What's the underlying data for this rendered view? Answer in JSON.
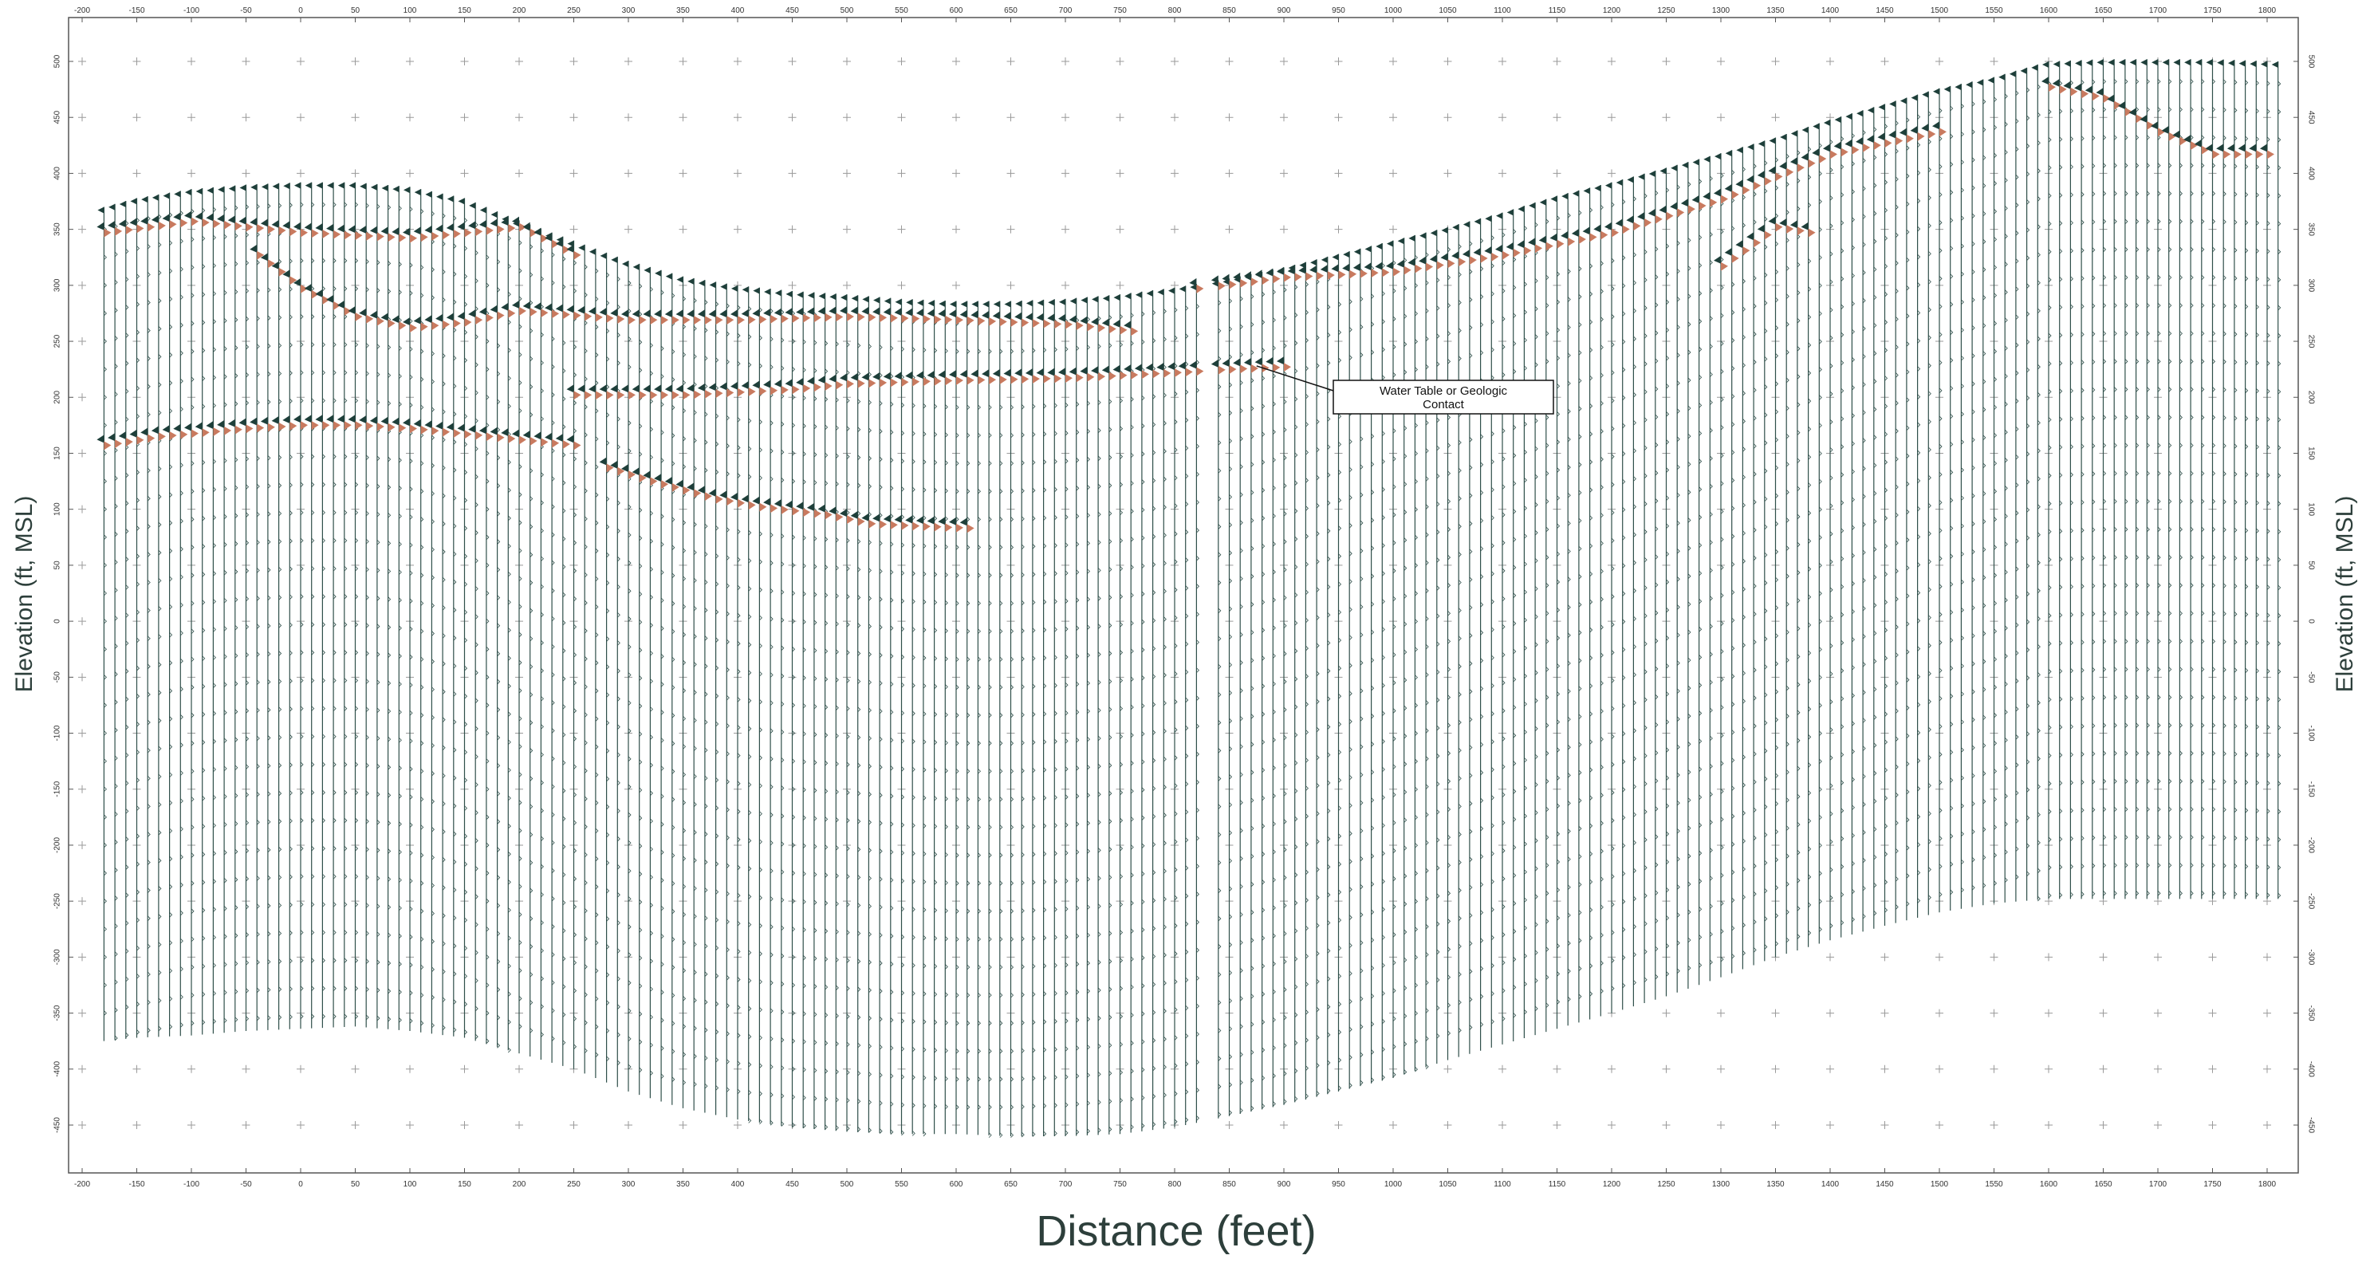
{
  "chart_data": {
    "type": "seismic-section",
    "xlabel": "Distance (feet)",
    "ylabel": "Elevation (ft, MSL)",
    "ylabel_right": "Elevation (ft, MSL)",
    "xlim": [
      -210,
      1815
    ],
    "ylim": [
      -490,
      505
    ],
    "x_ticks": [
      -200,
      -150,
      -100,
      -50,
      0,
      50,
      100,
      150,
      200,
      250,
      300,
      350,
      400,
      450,
      500,
      550,
      600,
      650,
      700,
      750,
      800,
      850,
      900,
      950,
      1000,
      1050,
      1100,
      1150,
      1200,
      1250,
      1300,
      1350,
      1400,
      1450,
      1500,
      1550,
      1600,
      1650,
      1700,
      1750,
      1800
    ],
    "y_ticks": [
      500,
      450,
      400,
      350,
      300,
      250,
      200,
      150,
      100,
      50,
      0,
      -50,
      -100,
      -150,
      -200,
      -250,
      -300,
      -350,
      -400,
      -450
    ],
    "grid": "plus-markers",
    "trace_spacing_ft": 10,
    "trace_x_start": -180,
    "trace_x_end": 1810,
    "gap_between_traces_at_ft": [
      830
    ],
    "colors": {
      "trace": "#2f4f4a",
      "positive_fill": "#1e3f3a",
      "negative_fill": "#c97a5f",
      "axis": "#555555",
      "grid_marker": "#9a9a9a"
    },
    "top_surface": [
      [
        -180,
        370
      ],
      [
        -150,
        378
      ],
      [
        -100,
        386
      ],
      [
        -50,
        390
      ],
      [
        0,
        392
      ],
      [
        50,
        392
      ],
      [
        100,
        388
      ],
      [
        150,
        378
      ],
      [
        200,
        358
      ],
      [
        250,
        340
      ],
      [
        300,
        322
      ],
      [
        350,
        308
      ],
      [
        400,
        300
      ],
      [
        450,
        295
      ],
      [
        500,
        292
      ],
      [
        550,
        288
      ],
      [
        600,
        286
      ],
      [
        650,
        286
      ],
      [
        700,
        288
      ],
      [
        750,
        292
      ],
      [
        800,
        298
      ],
      [
        850,
        306
      ],
      [
        900,
        316
      ],
      [
        950,
        328
      ],
      [
        1000,
        340
      ],
      [
        1050,
        352
      ],
      [
        1100,
        365
      ],
      [
        1150,
        380
      ],
      [
        1200,
        392
      ],
      [
        1250,
        405
      ],
      [
        1300,
        418
      ],
      [
        1350,
        432
      ],
      [
        1400,
        448
      ],
      [
        1450,
        462
      ],
      [
        1500,
        476
      ],
      [
        1550,
        486
      ],
      [
        1600,
        500
      ],
      [
        1650,
        502
      ],
      [
        1700,
        502
      ],
      [
        1750,
        502
      ],
      [
        1810,
        500
      ]
    ],
    "bottom_surface": [
      [
        -180,
        -375
      ],
      [
        -150,
        -372
      ],
      [
        -100,
        -370
      ],
      [
        -50,
        -366
      ],
      [
        0,
        -364
      ],
      [
        50,
        -362
      ],
      [
        100,
        -366
      ],
      [
        150,
        -372
      ],
      [
        200,
        -386
      ],
      [
        250,
        -400
      ],
      [
        300,
        -420
      ],
      [
        350,
        -435
      ],
      [
        400,
        -445
      ],
      [
        450,
        -452
      ],
      [
        500,
        -456
      ],
      [
        550,
        -458
      ],
      [
        600,
        -458
      ],
      [
        650,
        -460
      ],
      [
        700,
        -460
      ],
      [
        750,
        -458
      ],
      [
        800,
        -452
      ],
      [
        850,
        -442
      ],
      [
        900,
        -432
      ],
      [
        950,
        -420
      ],
      [
        1000,
        -408
      ],
      [
        1050,
        -392
      ],
      [
        1100,
        -378
      ],
      [
        1150,
        -364
      ],
      [
        1200,
        -350
      ],
      [
        1250,
        -335
      ],
      [
        1300,
        -318
      ],
      [
        1350,
        -300
      ],
      [
        1400,
        -285
      ],
      [
        1450,
        -272
      ],
      [
        1500,
        -260
      ],
      [
        1550,
        -252
      ],
      [
        1600,
        -248
      ],
      [
        1650,
        -248
      ],
      [
        1700,
        -248
      ],
      [
        1750,
        -248
      ],
      [
        1810,
        -248
      ]
    ],
    "reflectors": [
      {
        "points": [
          [
            -180,
            350
          ],
          [
            -100,
            360
          ],
          [
            0,
            350
          ],
          [
            100,
            345
          ],
          [
            200,
            355
          ],
          [
            250,
            330
          ]
        ]
      },
      {
        "points": [
          [
            -40,
            330
          ],
          [
            0,
            300
          ],
          [
            50,
            275
          ],
          [
            100,
            265
          ],
          [
            150,
            270
          ],
          [
            200,
            280
          ],
          [
            300,
            272
          ],
          [
            400,
            272
          ],
          [
            500,
            275
          ],
          [
            600,
            272
          ],
          [
            700,
            268
          ],
          [
            760,
            262
          ]
        ]
      },
      {
        "points": [
          [
            250,
            205
          ],
          [
            350,
            205
          ],
          [
            450,
            210
          ],
          [
            500,
            215
          ],
          [
            600,
            218
          ],
          [
            700,
            220
          ],
          [
            800,
            225
          ],
          [
            850,
            228
          ],
          [
            900,
            230
          ]
        ]
      },
      {
        "points": [
          [
            -180,
            160
          ],
          [
            -130,
            168
          ],
          [
            -50,
            175
          ],
          [
            0,
            178
          ],
          [
            50,
            178
          ],
          [
            100,
            175
          ],
          [
            150,
            170
          ],
          [
            200,
            165
          ],
          [
            250,
            160
          ]
        ]
      },
      {
        "points": [
          [
            280,
            140
          ],
          [
            320,
            128
          ],
          [
            380,
            112
          ],
          [
            420,
            105
          ],
          [
            480,
            98
          ],
          [
            520,
            90
          ],
          [
            560,
            88
          ],
          [
            610,
            86
          ]
        ]
      },
      {
        "points": [
          [
            820,
            300
          ],
          [
            900,
            310
          ],
          [
            1000,
            315
          ],
          [
            1100,
            330
          ],
          [
            1200,
            350
          ],
          [
            1300,
            380
          ],
          [
            1400,
            420
          ],
          [
            1500,
            440
          ]
        ]
      },
      {
        "points": [
          [
            1600,
            480
          ],
          [
            1650,
            470
          ],
          [
            1700,
            440
          ],
          [
            1750,
            420
          ],
          [
            1800,
            420
          ]
        ]
      },
      {
        "points": [
          [
            1300,
            320
          ],
          [
            1350,
            355
          ],
          [
            1380,
            350
          ]
        ]
      }
    ],
    "annotations": [
      {
        "text_line1": "Water Table or Geologic",
        "text_line2": "Contact",
        "target": [
          875,
          228
        ]
      }
    ]
  }
}
